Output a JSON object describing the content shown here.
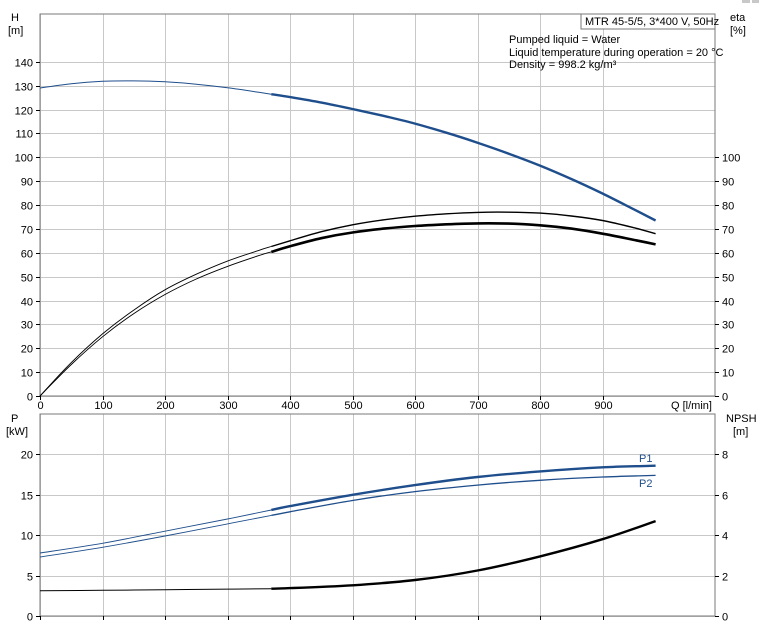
{
  "chart_data": [
    {
      "type": "line",
      "panel": "top",
      "title": "MTR 45-5/5, 3*400 V, 50Hz",
      "notes": [
        "Pumped liquid = Water",
        "Liquid temperature during operation = 20 °C",
        "Density = 998.2 kg/m³"
      ],
      "xlabel": "Q [l/min]",
      "ylabel": [
        "H",
        "[m]"
      ],
      "y2label": [
        "eta",
        "[%]"
      ],
      "xlim": [
        0,
        1080
      ],
      "ylim": [
        0,
        160
      ],
      "y2lim": [
        0,
        160
      ],
      "xticks": [
        "0",
        "100",
        "200",
        "300",
        "400",
        "500",
        "600",
        "700",
        "800",
        "900"
      ],
      "yticks": [
        "0",
        "10",
        "20",
        "30",
        "40",
        "50",
        "60",
        "70",
        "80",
        "90",
        "100",
        "110",
        "120",
        "130",
        "140"
      ],
      "y2ticks": [
        "0",
        "10",
        "20",
        "30",
        "40",
        "50",
        "60",
        "70",
        "80",
        "90",
        "100"
      ],
      "grid": true,
      "colors": {
        "head": "#1f4e8c",
        "eta": "#000000",
        "eta_outline": "#000000"
      },
      "series": [
        {
          "role": "head",
          "axis": "left",
          "x": [
            0,
            50,
            100,
            150,
            200,
            250,
            300,
            350,
            400,
            450,
            500,
            550,
            600,
            650,
            700,
            750,
            800,
            850,
            900,
            950,
            985
          ],
          "y": [
            129,
            130.8,
            131.8,
            132.0,
            131.6,
            130.6,
            129.1,
            127.2,
            125.2,
            122.9,
            120.2,
            117.3,
            114.1,
            110.3,
            106.1,
            101.5,
            96.5,
            90.9,
            84.8,
            78.2,
            73.5
          ],
          "highlight_from": 370
        },
        {
          "role": "eta-upper",
          "axis": "right",
          "x": [
            0,
            50,
            100,
            150,
            200,
            250,
            300,
            350,
            400,
            450,
            500,
            550,
            600,
            650,
            700,
            750,
            800,
            850,
            900,
            950,
            985
          ],
          "y": [
            0,
            14,
            26,
            36,
            44.5,
            51,
            56.5,
            61,
            65,
            68.8,
            71.7,
            73.8,
            75.3,
            76.3,
            76.9,
            77.0,
            76.6,
            75.4,
            73.5,
            70.5,
            68
          ],
          "highlight_from": 370
        },
        {
          "role": "eta-lower",
          "axis": "right",
          "x": [
            0,
            50,
            100,
            150,
            200,
            250,
            300,
            350,
            400,
            450,
            500,
            550,
            600,
            650,
            700,
            750,
            800,
            850,
            900,
            950,
            985
          ],
          "y": [
            0,
            13.2,
            24.8,
            34.5,
            42.5,
            49,
            54.3,
            58.8,
            62.7,
            66.1,
            68.5,
            70.1,
            71.2,
            71.9,
            72.3,
            72.2,
            71.5,
            70.1,
            68.0,
            65.4,
            63.5
          ],
          "highlight_from": 370
        }
      ]
    },
    {
      "type": "line",
      "panel": "bottom",
      "xlabel": "",
      "ylabel": [
        "P",
        "[kW]"
      ],
      "y2label": [
        "NPSH",
        "[m]"
      ],
      "xlim": [
        0,
        1080
      ],
      "ylim": [
        0,
        25
      ],
      "y2lim": [
        0,
        10
      ],
      "yticks": [
        "0",
        "5",
        "10",
        "15",
        "20"
      ],
      "y2ticks": [
        "0",
        "2",
        "4",
        "6",
        "8"
      ],
      "grid": true,
      "colors": {
        "P1": "#1f4e8c",
        "P2": "#1f4e8c",
        "NPSH": "#000000"
      },
      "series": [
        {
          "name": "P1",
          "axis": "left",
          "x": [
            0,
            100,
            200,
            300,
            400,
            500,
            600,
            700,
            800,
            900,
            985
          ],
          "y": [
            7.8,
            9.0,
            10.5,
            12.0,
            13.6,
            15.0,
            16.2,
            17.2,
            17.9,
            18.4,
            18.6
          ],
          "highlight_from": 370
        },
        {
          "name": "P2",
          "axis": "left",
          "x": [
            0,
            100,
            200,
            300,
            400,
            500,
            600,
            700,
            800,
            900,
            985
          ],
          "y": [
            7.3,
            8.5,
            9.9,
            11.4,
            12.9,
            14.3,
            15.4,
            16.2,
            16.8,
            17.2,
            17.4
          ],
          "highlight_from": 370
        },
        {
          "name": "NPSH",
          "axis": "right",
          "x": [
            0,
            100,
            200,
            300,
            370,
            400,
            500,
            600,
            700,
            800,
            900,
            985
          ],
          "y": [
            1.25,
            1.27,
            1.3,
            1.33,
            1.35,
            1.38,
            1.52,
            1.78,
            2.25,
            2.95,
            3.8,
            4.7
          ],
          "highlight_from": 370
        }
      ]
    }
  ]
}
